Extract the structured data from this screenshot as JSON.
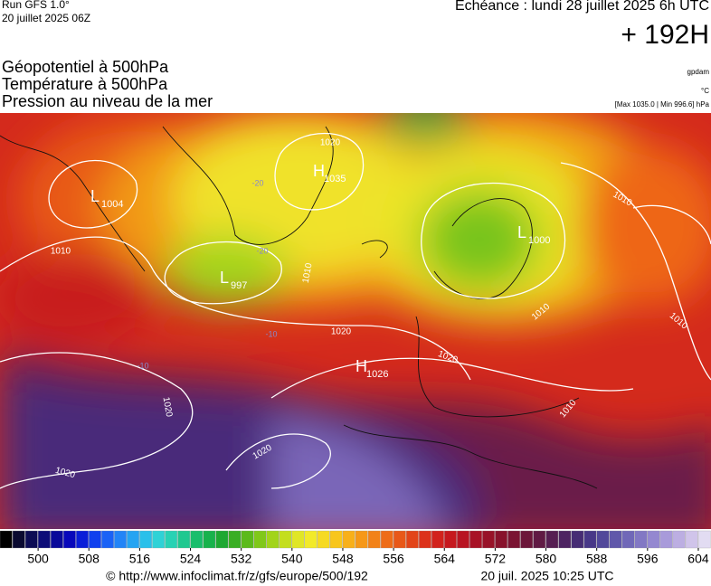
{
  "header": {
    "run": "Run GFS 1.0°",
    "run_date": "20 juillet 2025 06Z",
    "valid": "Echéance : lundi 28 juillet 2025 6h UTC",
    "lead": "+ 192H",
    "fields": [
      "Géopotentiel à 500hPa",
      "Température à 500hPa",
      "Pression au niveau de la mer"
    ],
    "units": [
      "gpdam",
      "°C",
      "[Max 1035.0 | Min 996.6] hPa"
    ]
  },
  "map": {
    "centers": [
      {
        "symbol": "L",
        "value": "1004"
      },
      {
        "symbol": "L",
        "value": "997"
      },
      {
        "symbol": "H",
        "value": "1035"
      },
      {
        "symbol": "H",
        "value": "1026"
      },
      {
        "symbol": "L",
        "value": "1000"
      }
    ],
    "isobar_labels": [
      "1010",
      "1020",
      "1010",
      "1020",
      "1020",
      "1020",
      "1020",
      "1010",
      "1010",
      "1010",
      "1010",
      "1020"
    ],
    "temperature_labels": [
      "-20",
      "-20",
      "-10",
      "-10"
    ]
  },
  "colorbar": {
    "range": [
      494,
      606
    ],
    "ticks": [
      500,
      508,
      516,
      524,
      532,
      540,
      548,
      556,
      564,
      572,
      580,
      588,
      596,
      604
    ],
    "colors": [
      "#000000",
      "#0a0a30",
      "#0c0c55",
      "#0d0d78",
      "#0a0a9a",
      "#0808bb",
      "#0a1ed8",
      "#1040ee",
      "#1a62f6",
      "#2284f7",
      "#25a4f2",
      "#2ac0ea",
      "#2fd2d6",
      "#28d2b4",
      "#20c890",
      "#1abe6c",
      "#18b24c",
      "#1ea832",
      "#3aae24",
      "#5cba1c",
      "#80c81a",
      "#a2d41a",
      "#c4de1e",
      "#e0e626",
      "#f2ea2a",
      "#f6da22",
      "#f8c61c",
      "#f8b01a",
      "#f69818",
      "#f28218",
      "#ee6c18",
      "#e85818",
      "#e24418",
      "#dc321a",
      "#d2221c",
      "#c6181e",
      "#b81422",
      "#a81226",
      "#981228",
      "#88122c",
      "#7a1432",
      "#6c163a",
      "#601a44",
      "#561e52",
      "#4e2462",
      "#462c74",
      "#483888",
      "#52489a",
      "#6058aa",
      "#7068b8",
      "#8278c4",
      "#9488d0",
      "#a89ada",
      "#bcaee2",
      "#d0c4ea",
      "#e2dcf2"
    ]
  },
  "footer": {
    "source": "© http://www.infoclimat.fr/z/gfs/europe/500/192",
    "generated": "20 juil. 2025 10:25 UTC"
  }
}
